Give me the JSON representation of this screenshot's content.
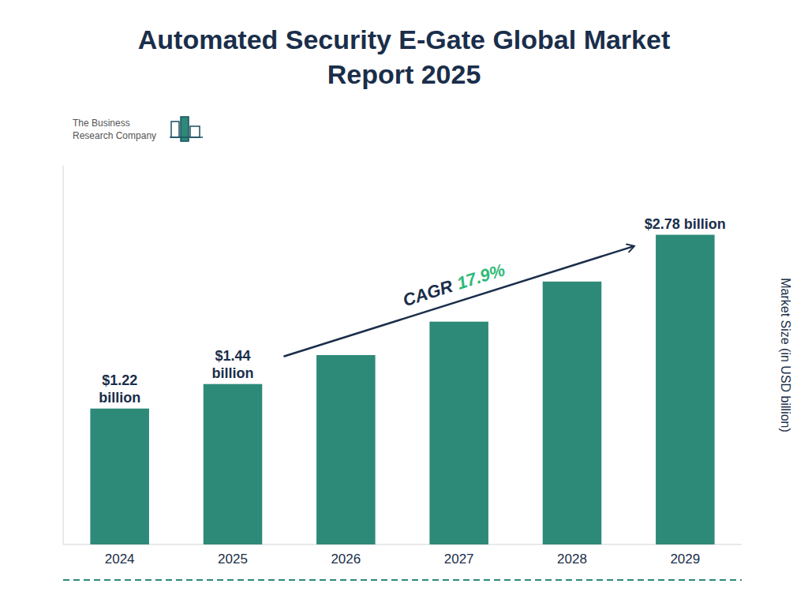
{
  "chart_data": {
    "type": "bar",
    "title": "Automated Security E-Gate Global Market\nReport 2025",
    "categories": [
      "2024",
      "2025",
      "2026",
      "2027",
      "2028",
      "2029"
    ],
    "values": [
      1.22,
      1.44,
      1.7,
      2.0,
      2.36,
      2.78
    ],
    "value_labels": [
      "$1.22\nbillion",
      "$1.44\nbillion",
      null,
      null,
      null,
      "$2.78 billion"
    ],
    "data_labels": true,
    "color": "#2d8a78",
    "ylabel": "Market Size (in USD billion)",
    "ylim": [
      0,
      3.4
    ],
    "yticks": [],
    "grid": false,
    "tick_labels": "x",
    "annotations": [
      "CAGR",
      "17.9%",
      "The Business\nResearch Company"
    ]
  }
}
